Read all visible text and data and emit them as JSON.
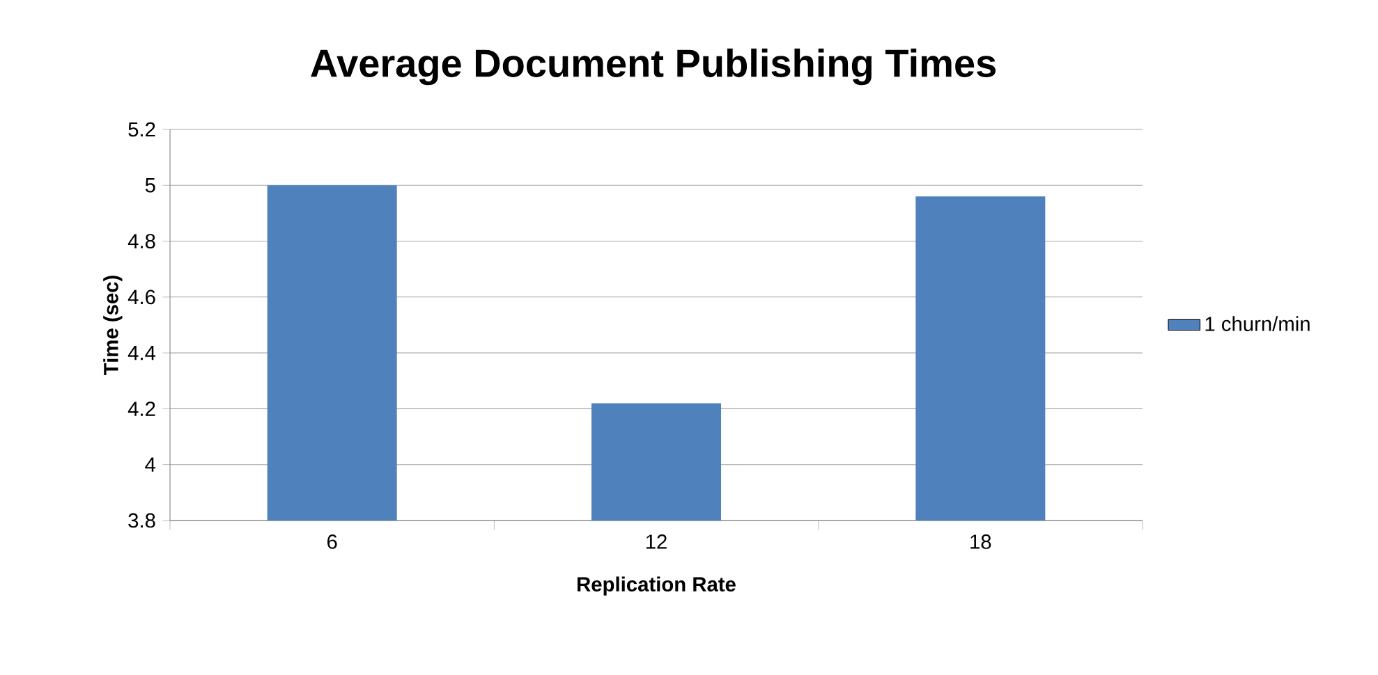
{
  "chart_data": {
    "type": "bar",
    "title": "Average Document Publishing Times",
    "xlabel": "Replication Rate",
    "ylabel": "Time (sec)",
    "categories": [
      "6",
      "12",
      "18"
    ],
    "series": [
      {
        "name": "1 churn/min",
        "color": "#4f81bd",
        "values": [
          5.0,
          4.22,
          4.96
        ]
      }
    ],
    "ylim": [
      3.8,
      5.2
    ],
    "yticks": [
      3.8,
      4,
      4.2,
      4.4,
      4.6,
      4.8,
      5,
      5.2
    ],
    "grid": "y",
    "legend": "right"
  }
}
